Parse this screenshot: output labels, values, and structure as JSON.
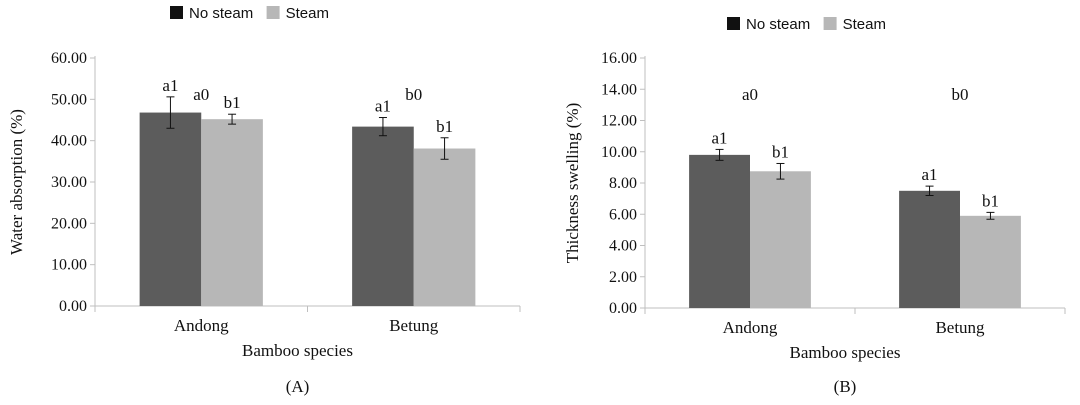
{
  "colors": {
    "no_steam": "#5c5c5c",
    "steam": "#b7b7b7",
    "axis": "#bfbfbf",
    "text": "#111111"
  },
  "chart_data": [
    {
      "type": "bar",
      "panel_label": "(A)",
      "xlabel": "Bamboo species",
      "ylabel": "Water absorption (%)",
      "ylim": [
        0,
        60
      ],
      "yticks": [
        "0.00",
        "10.00",
        "20.00",
        "30.00",
        "40.00",
        "50.00",
        "60.00"
      ],
      "legend": {
        "position": "top",
        "entries": [
          "No steam",
          "Steam"
        ]
      },
      "categories": [
        "Andong",
        "Betung"
      ],
      "group_labels": [
        "a0",
        "b0"
      ],
      "series": [
        {
          "name": "No steam",
          "values": [
            46.8,
            43.4
          ],
          "errors": [
            3.8,
            2.2
          ],
          "labels": [
            "a1",
            "a1"
          ]
        },
        {
          "name": "Steam",
          "values": [
            45.2,
            38.1
          ],
          "errors": [
            1.2,
            2.6
          ],
          "labels": [
            "b1",
            "b1"
          ]
        }
      ]
    },
    {
      "type": "bar",
      "panel_label": "(B)",
      "xlabel": "Bamboo species",
      "ylabel": "Thickness swelling (%)",
      "ylim": [
        0,
        16
      ],
      "yticks": [
        "0.00",
        "2.00",
        "4.00",
        "6.00",
        "8.00",
        "10.00",
        "12.00",
        "14.00",
        "16.00"
      ],
      "legend": {
        "position": "top",
        "entries": [
          "No steam",
          "Steam"
        ]
      },
      "categories": [
        "Andong",
        "Betung"
      ],
      "group_labels": [
        "a0",
        "b0"
      ],
      "series": [
        {
          "name": "No steam",
          "values": [
            9.8,
            7.5
          ],
          "errors": [
            0.35,
            0.3
          ],
          "labels": [
            "a1",
            "a1"
          ]
        },
        {
          "name": "Steam",
          "values": [
            8.75,
            5.9
          ],
          "errors": [
            0.5,
            0.22
          ],
          "labels": [
            "b1",
            "b1"
          ]
        }
      ]
    }
  ]
}
